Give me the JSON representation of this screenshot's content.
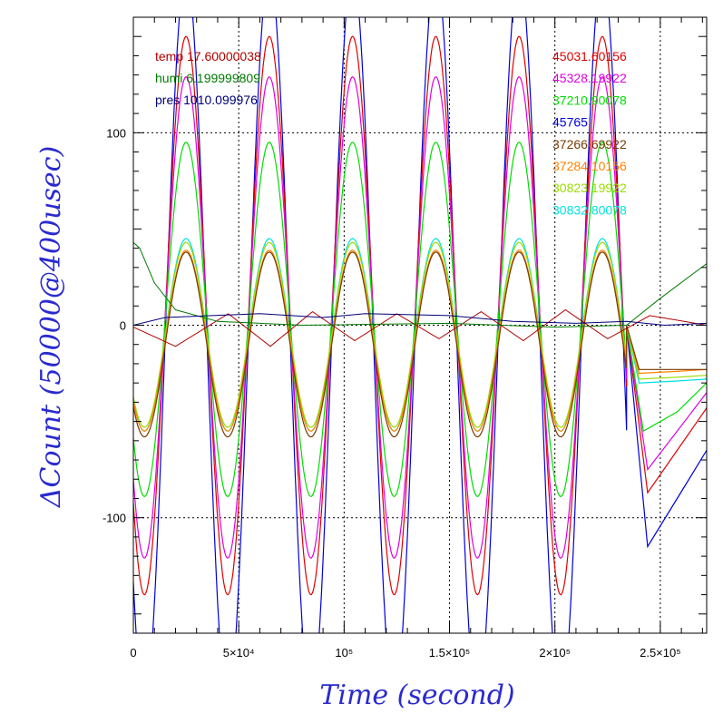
{
  "chart_data": {
    "type": "line",
    "xlabel": "Time (second)",
    "ylabel": "ΔCount (50000@400usec)",
    "xlim": [
      0,
      272000
    ],
    "ylim": [
      -160,
      160
    ],
    "x_ticks": [
      {
        "value": 0,
        "label": "0"
      },
      {
        "value": 50000,
        "label": "5×10⁴"
      },
      {
        "value": 100000,
        "label": "10⁵"
      },
      {
        "value": 150000,
        "label": "1.5×10⁵"
      },
      {
        "value": 200000,
        "label": "2×10⁵"
      },
      {
        "value": 250000,
        "label": "2.5×10⁵"
      }
    ],
    "y_ticks": [
      {
        "value": -100,
        "label": "-100"
      },
      {
        "value": 0,
        "label": "0"
      },
      {
        "value": 100,
        "label": "100"
      }
    ],
    "grid": true,
    "legend_left": [
      {
        "text": "temp 17.60000038",
        "color": "#b00000"
      },
      {
        "text": "humi 6.199999809",
        "color": "#007a00"
      },
      {
        "text": "pres 1010.099976",
        "color": "#00007a"
      }
    ],
    "legend_right": [
      {
        "text": "45031.60156",
        "color": "#e00000"
      },
      {
        "text": "45328.19922",
        "color": "#e000e0"
      },
      {
        "text": "37210.90078",
        "color": "#00dd00"
      },
      {
        "text": "45765",
        "color": "#0000e0"
      },
      {
        "text": "37266.69922",
        "color": "#7a3a00"
      },
      {
        "text": "37284.10156",
        "color": "#ff8000"
      },
      {
        "text": "30823.19922",
        "color": "#99dd00"
      },
      {
        "text": "30832.80078",
        "color": "#00e0e0"
      }
    ],
    "oscillation": {
      "period": 39500,
      "first_peak_x": 25000,
      "end_x": 234000
    },
    "series": [
      {
        "name": "45765",
        "color": "#0000e0",
        "amplitude": 190,
        "offset": -6,
        "tail": [
          [
            234000,
            0
          ],
          [
            244000,
            -115
          ],
          [
            258000,
            -90
          ],
          [
            272000,
            -65
          ]
        ]
      },
      {
        "name": "45031.60156",
        "color": "#e00000",
        "amplitude": 145,
        "offset": 5,
        "tail": [
          [
            234000,
            0
          ],
          [
            244000,
            -87
          ],
          [
            258000,
            -65
          ],
          [
            272000,
            -43
          ]
        ]
      },
      {
        "name": "45328.19922",
        "color": "#e000e0",
        "amplitude": 125,
        "offset": 4,
        "tail": [
          [
            234000,
            0
          ],
          [
            244000,
            -75
          ],
          [
            258000,
            -55
          ],
          [
            272000,
            -35
          ]
        ]
      },
      {
        "name": "37210.90078",
        "color": "#00dd00",
        "amplitude": 92,
        "offset": 3,
        "tail": [
          [
            234000,
            0
          ],
          [
            242000,
            -55
          ],
          [
            258000,
            -45
          ],
          [
            272000,
            -30
          ]
        ]
      },
      {
        "name": "30832.80078",
        "color": "#00e0e0",
        "amplitude": 50,
        "offset": -5,
        "tail": [
          [
            234000,
            0
          ],
          [
            240000,
            -30
          ],
          [
            258000,
            -29
          ],
          [
            272000,
            -28
          ]
        ]
      },
      {
        "name": "30823.19922",
        "color": "#99dd00",
        "amplitude": 48,
        "offset": -5,
        "tail": [
          [
            234000,
            0
          ],
          [
            240000,
            -28
          ],
          [
            258000,
            -27
          ],
          [
            272000,
            -26
          ]
        ]
      },
      {
        "name": "37284.10156",
        "color": "#ff8000",
        "amplitude": 47,
        "offset": -8,
        "tail": [
          [
            234000,
            0
          ],
          [
            240000,
            -25
          ],
          [
            258000,
            -24
          ],
          [
            272000,
            -23
          ]
        ]
      },
      {
        "name": "37266.69922",
        "color": "#7a3a00",
        "amplitude": 48,
        "offset": -10,
        "tail": [
          [
            234000,
            0
          ],
          [
            240000,
            -23
          ],
          [
            258000,
            -23
          ],
          [
            272000,
            -23
          ]
        ]
      }
    ],
    "env_series": [
      {
        "name": "temp 17.60000038",
        "color": "#b00000",
        "points": [
          [
            0,
            -1
          ],
          [
            20000,
            -11
          ],
          [
            45000,
            6
          ],
          [
            65000,
            -11
          ],
          [
            85000,
            7
          ],
          [
            105000,
            -8
          ],
          [
            125000,
            6
          ],
          [
            145000,
            -7
          ],
          [
            165000,
            7
          ],
          [
            185000,
            -8
          ],
          [
            205000,
            8
          ],
          [
            225000,
            -7
          ],
          [
            245000,
            5
          ],
          [
            272000,
            0
          ]
        ]
      },
      {
        "name": "humi 6.199999809",
        "color": "#007a00",
        "points": [
          [
            0,
            43
          ],
          [
            3000,
            40
          ],
          [
            10000,
            22
          ],
          [
            20000,
            8
          ],
          [
            40000,
            2
          ],
          [
            80000,
            0
          ],
          [
            150000,
            1
          ],
          [
            200000,
            -1
          ],
          [
            234000,
            0
          ],
          [
            250000,
            14
          ],
          [
            272000,
            32
          ]
        ]
      },
      {
        "name": "pres 1010.099976",
        "color": "#00007a",
        "points": [
          [
            0,
            0
          ],
          [
            15000,
            4
          ],
          [
            60000,
            6
          ],
          [
            90000,
            4
          ],
          [
            110000,
            6
          ],
          [
            150000,
            5
          ],
          [
            180000,
            2
          ],
          [
            210000,
            1
          ],
          [
            234000,
            2
          ],
          [
            252000,
            0
          ],
          [
            272000,
            1
          ]
        ]
      }
    ]
  }
}
